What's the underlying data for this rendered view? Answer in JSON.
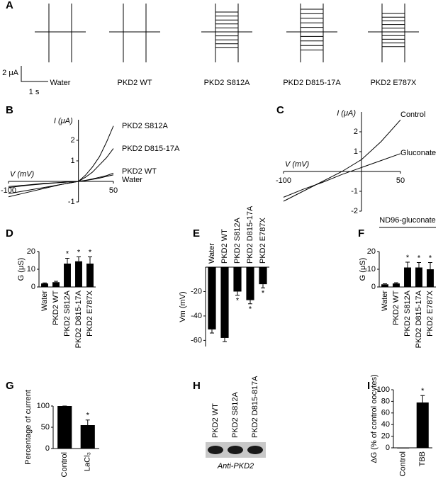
{
  "chart_data": [
    {
      "panel": "A",
      "type": "traces",
      "categories": [
        "Water",
        "PKD2 WT",
        "PKD2 S812A",
        "PKD2 D815-17A",
        "PKD2 E787X"
      ],
      "scale_labels": [
        "2 μA",
        "1 s"
      ]
    },
    {
      "panel": "B",
      "type": "line",
      "x_label": "V (mV)",
      "y_label": "I (μA)",
      "xlim": [
        -100,
        50
      ],
      "ylim": [
        -1,
        3
      ],
      "xticks": [
        -100,
        50
      ],
      "yticks": [
        -1,
        1,
        2
      ],
      "x": [
        -100,
        -75,
        -50,
        -25,
        0,
        10,
        20,
        30,
        40,
        50
      ],
      "series": [
        {
          "name": "PKD2 S812A",
          "color": "#000000",
          "values": [
            -0.75,
            -0.55,
            -0.35,
            -0.15,
            0,
            0.3,
            0.7,
            1.2,
            1.9,
            2.7
          ]
        },
        {
          "name": "PKD2 D815-17A",
          "color": "#000000",
          "values": [
            -0.6,
            -0.45,
            -0.3,
            -0.15,
            0,
            0.2,
            0.45,
            0.8,
            1.15,
            1.6
          ]
        },
        {
          "name": "PKD2 WT",
          "color": "#000000",
          "values": [
            -0.3,
            -0.2,
            -0.12,
            -0.05,
            0,
            0.05,
            0.12,
            0.2,
            0.28,
            0.4
          ]
        },
        {
          "name": "Water",
          "color": "#000000",
          "values": [
            -0.25,
            -0.18,
            -0.1,
            -0.05,
            0,
            0.04,
            0.1,
            0.16,
            0.24,
            0.32
          ]
        }
      ]
    },
    {
      "panel": "C",
      "type": "line",
      "x_label": "V (mV)",
      "y_label": "I (μA)",
      "xlim": [
        -100,
        50
      ],
      "ylim": [
        -2,
        3
      ],
      "xticks": [
        -100,
        50
      ],
      "yticks": [
        -2,
        -1,
        1,
        2
      ],
      "x": [
        -100,
        -75,
        -50,
        -25,
        0,
        25,
        50
      ],
      "series": [
        {
          "name": "Control",
          "color": "#000000",
          "values": [
            -1.5,
            -1.0,
            -0.5,
            0,
            0.6,
            1.5,
            2.6
          ]
        },
        {
          "name": "Gluconate",
          "color": "#000000",
          "values": [
            -1.3,
            -0.9,
            -0.55,
            -0.15,
            0.2,
            0.55,
            0.9
          ]
        }
      ]
    },
    {
      "panel": "D",
      "type": "bar",
      "y_label": "G (μS)",
      "categories": [
        "Water",
        "PKD2 WT",
        "PKD2 S812A",
        "PKD2 D815-17A",
        "PKD2 E787X"
      ],
      "values": [
        2,
        2.7,
        13.2,
        14.5,
        13.2
      ],
      "errors": [
        0.3,
        0.5,
        3,
        2.5,
        3.8
      ],
      "significance": [
        null,
        null,
        "*",
        "*",
        "*"
      ],
      "color": "#000000",
      "ylim": [
        0,
        20
      ],
      "yticks": [
        0,
        10,
        20
      ]
    },
    {
      "panel": "E",
      "type": "bar",
      "y_label": "Vm (mV)",
      "categories": [
        "Water",
        "PKD2 WT",
        "PKD2 S812A",
        "PKD2 D815-17A",
        "PKD2 E787X"
      ],
      "values": [
        -51,
        -58,
        -20,
        -27,
        -14
      ],
      "errors": [
        3,
        3,
        3,
        3,
        3
      ],
      "significance": [
        null,
        null,
        "*",
        "*",
        "*"
      ],
      "color": "#000000",
      "ylim": [
        -65,
        0
      ],
      "yticks": [
        -60,
        -40,
        -20
      ]
    },
    {
      "panel": "F",
      "type": "bar",
      "header": "ND96-gluconate",
      "y_label": "G (μS)",
      "categories": [
        "Water",
        "PKD2 WT",
        "PKD2 S812A",
        "PKD2 D815-17A",
        "PKD2 E787X"
      ],
      "values": [
        1.5,
        2,
        11,
        11,
        10
      ],
      "errors": [
        0.3,
        0.4,
        3,
        2.8,
        3.8
      ],
      "significance": [
        null,
        null,
        "*",
        "*",
        "*"
      ],
      "color": "#000000",
      "ylim": [
        0,
        20
      ],
      "yticks": [
        0,
        10,
        20
      ]
    },
    {
      "panel": "G",
      "type": "bar",
      "y_label": "Percentage of current",
      "categories": [
        "Control",
        "LaCl₃"
      ],
      "values": [
        100,
        55
      ],
      "errors": [
        0,
        12
      ],
      "significance": [
        null,
        "*"
      ],
      "color": "#000000",
      "ylim": [
        0,
        100
      ],
      "yticks": [
        0,
        50,
        100
      ]
    },
    {
      "panel": "H",
      "type": "blot",
      "categories": [
        "PKD2 WT",
        "PKD2 S812A",
        "PKD2 D815-817A"
      ],
      "caption": "Anti-PKD2"
    },
    {
      "panel": "I",
      "type": "bar",
      "y_label": "ΔG (% of control oocytes)",
      "categories": [
        "Control",
        "TBB"
      ],
      "values": [
        0,
        78
      ],
      "errors": [
        0,
        12
      ],
      "significance": [
        null,
        "*"
      ],
      "color": "#000000",
      "ylim": [
        0,
        100
      ],
      "yticks": [
        0,
        20,
        40,
        60,
        80,
        100
      ]
    }
  ]
}
